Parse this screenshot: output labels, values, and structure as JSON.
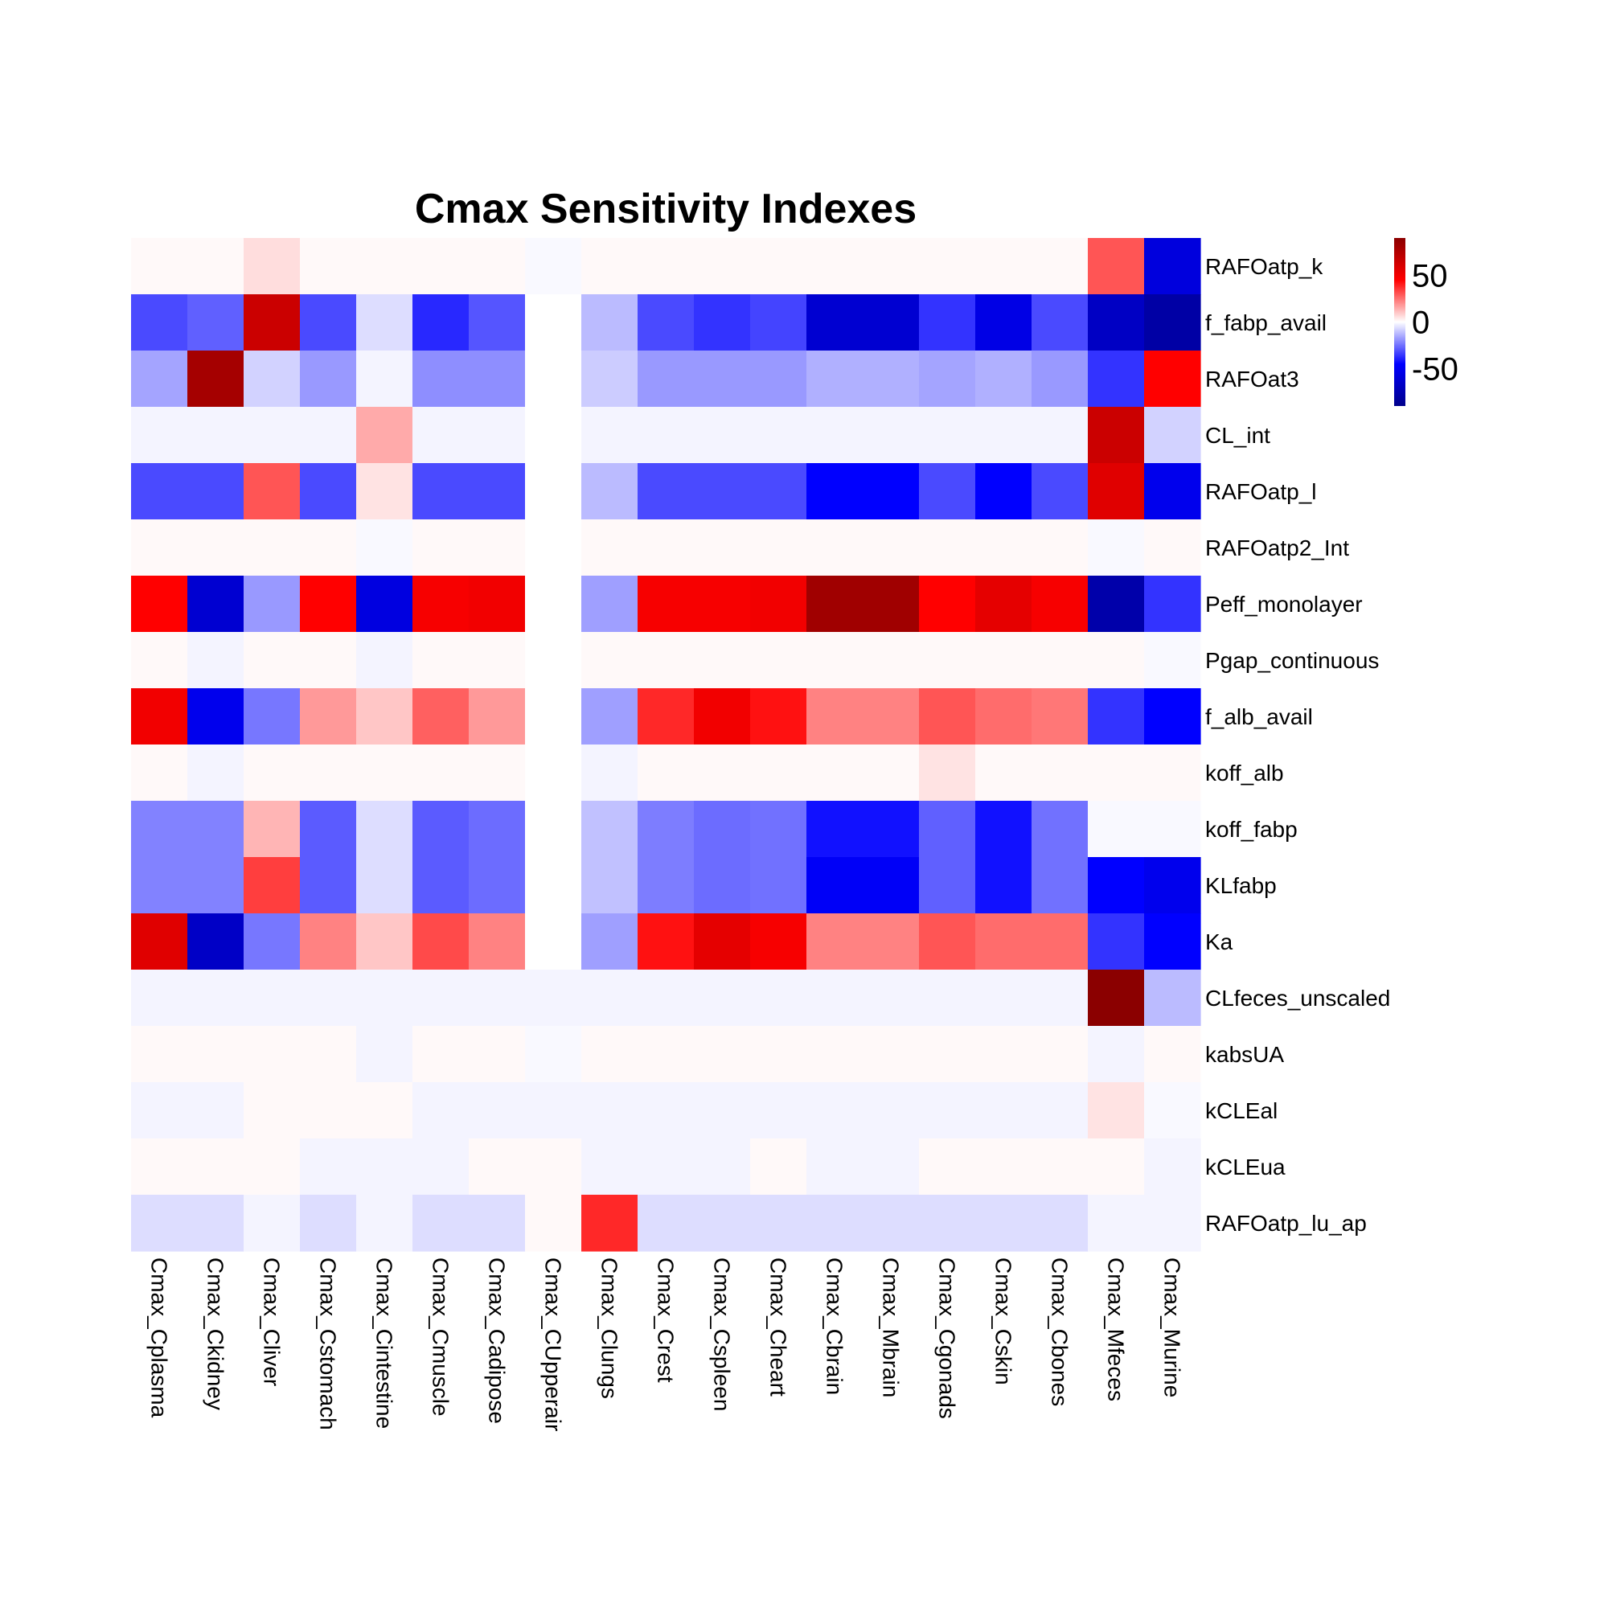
{
  "chart_data": {
    "type": "heatmap",
    "title": "Cmax Sensitivity Indexes",
    "columns": [
      "Cmax_Cplasma",
      "Cmax_Ckidney",
      "Cmax_Cliver",
      "Cmax_Cstomach",
      "Cmax_Cintestine",
      "Cmax_Cmuscle",
      "Cmax_Cadipose",
      "Cmax_CUpperair",
      "Cmax_Clungs",
      "Cmax_Crest",
      "Cmax_Cspleen",
      "Cmax_Cheart",
      "Cmax_Cbrain",
      "Cmax_Mbrain",
      "Cmax_Cgonads",
      "Cmax_Cskin",
      "Cmax_Cbones",
      "Cmax_Mfeces",
      "Cmax_Murine"
    ],
    "rows": [
      "RAFOatp_k",
      "f_fabp_avail",
      "RAFOat3",
      "CL_int",
      "RAFOatp_l",
      "RAFOatp2_Int",
      "Peff_monolayer",
      "Pgap_continuous",
      "f_alb_avail",
      "koff_alb",
      "koff_fabp",
      "KLfabp",
      "Ka",
      "CLfeces_unscaled",
      "kabsUA",
      "kCLEal",
      "kCLEua",
      "RAFOatp_lu_ap"
    ],
    "values": [
      [
        1,
        1,
        6,
        1,
        1,
        1,
        1,
        -1,
        1,
        1,
        1,
        1,
        1,
        1,
        1,
        1,
        1,
        30,
        -58
      ],
      [
        -32,
        -28,
        65,
        -32,
        -6,
        -38,
        -30,
        0,
        -12,
        -32,
        -36,
        -33,
        -63,
        -63,
        -36,
        -55,
        -32,
        -68,
        -80
      ],
      [
        -16,
        80,
        -8,
        -18,
        -2,
        -20,
        -20,
        0,
        -9,
        -18,
        -18,
        -18,
        -14,
        -14,
        -16,
        -14,
        -18,
        -36,
        45
      ],
      [
        -2,
        -2,
        -2,
        -2,
        15,
        -2,
        -2,
        0,
        -2,
        -2,
        -2,
        -2,
        -2,
        -2,
        -2,
        -2,
        -2,
        65,
        -8
      ],
      [
        -32,
        -32,
        30,
        -32,
        5,
        -32,
        -32,
        0,
        -12,
        -32,
        -32,
        -32,
        -45,
        -45,
        -32,
        -45,
        -32,
        57,
        -52
      ],
      [
        1,
        1,
        1,
        1,
        -1,
        1,
        1,
        0,
        1,
        1,
        1,
        1,
        1,
        1,
        1,
        1,
        1,
        -1,
        1
      ],
      [
        45,
        -63,
        -18,
        45,
        -57,
        48,
        50,
        0,
        -17,
        48,
        48,
        50,
        82,
        82,
        45,
        55,
        48,
        -78,
        -36
      ],
      [
        1,
        -2,
        1,
        1,
        -2,
        1,
        1,
        0,
        1,
        1,
        1,
        1,
        1,
        1,
        1,
        1,
        1,
        1,
        -1
      ],
      [
        50,
        -52,
        -24,
        18,
        10,
        28,
        18,
        0,
        -17,
        38,
        50,
        42,
        22,
        22,
        30,
        26,
        24,
        -36,
        -45
      ],
      [
        1,
        -2,
        1,
        1,
        1,
        1,
        1,
        0,
        -2,
        1,
        1,
        1,
        1,
        1,
        5,
        1,
        1,
        1,
        1
      ],
      [
        -22,
        -22,
        13,
        -29,
        -6,
        -29,
        -26,
        0,
        -11,
        -23,
        -26,
        -25,
        -42,
        -42,
        -28,
        -42,
        -25,
        -1,
        -1
      ],
      [
        -22,
        -22,
        34,
        -29,
        -6,
        -29,
        -26,
        0,
        -11,
        -23,
        -26,
        -25,
        -48,
        -48,
        -28,
        -42,
        -25,
        -45,
        -52
      ],
      [
        57,
        -67,
        -24,
        22,
        10,
        32,
        22,
        0,
        -17,
        42,
        55,
        48,
        22,
        22,
        30,
        26,
        26,
        -36,
        -45
      ],
      [
        -2,
        -2,
        -2,
        -2,
        -2,
        -2,
        -2,
        -2,
        -2,
        -2,
        -2,
        -2,
        -2,
        -2,
        -2,
        -2,
        -2,
        95,
        -12
      ],
      [
        1,
        1,
        1,
        1,
        -2,
        1,
        1,
        -1,
        1,
        1,
        1,
        1,
        1,
        1,
        1,
        1,
        1,
        -2,
        1
      ],
      [
        -2,
        -2,
        1,
        1,
        1,
        -2,
        -2,
        -2,
        -2,
        -2,
        -2,
        -2,
        -2,
        -2,
        -2,
        -2,
        -2,
        5,
        -1
      ],
      [
        1,
        1,
        1,
        -2,
        -2,
        -2,
        1,
        1,
        -2,
        -2,
        -2,
        1,
        -2,
        -2,
        1,
        1,
        1,
        1,
        -2
      ],
      [
        -6,
        -6,
        -2,
        -6,
        -2,
        -6,
        -6,
        1,
        38,
        -6,
        -6,
        -6,
        -6,
        -6,
        -6,
        -6,
        -6,
        -2,
        -2
      ]
    ],
    "legend": {
      "ticks": [
        50,
        0,
        -50
      ],
      "range": [
        -90,
        90
      ]
    },
    "colors": {
      "low": "#00008B",
      "mid_low": "#0000FF",
      "mid": "#FFFFFF",
      "mid_high": "#FF0000",
      "high": "#8B0000"
    }
  }
}
